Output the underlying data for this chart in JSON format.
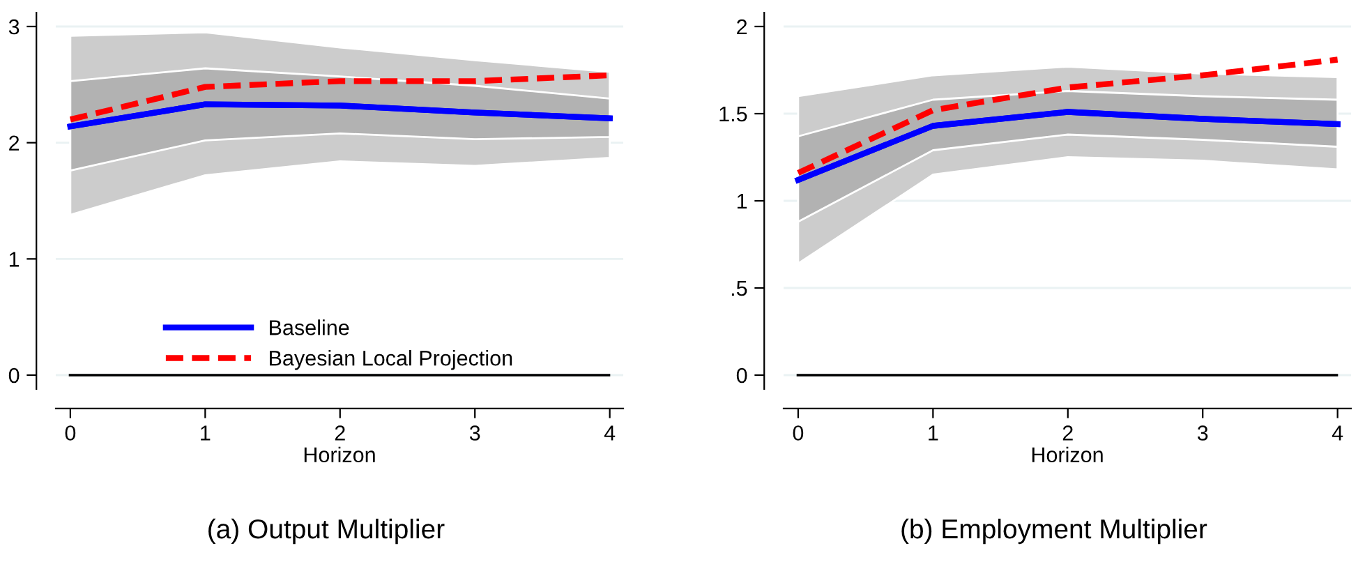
{
  "chart_data": [
    {
      "type": "line",
      "title": "(a) Output Multiplier",
      "xlabel": "Horizon",
      "x": [
        0,
        1,
        2,
        3,
        4
      ],
      "xlim": [
        -0.108,
        4.1
      ],
      "xticks": [
        0,
        1,
        2,
        3,
        4
      ],
      "ylim": [
        -0.12,
        3.12
      ],
      "yticks": [
        0,
        1,
        2,
        3
      ],
      "grid": "y",
      "legend": "bottom",
      "line_style": "solid",
      "ref_lines": [
        {
          "axis": "y",
          "value": 0,
          "color": "#000000"
        }
      ],
      "series": [
        {
          "color": "#0000ff",
          "values": [
            2.14,
            2.33,
            2.32,
            2.26,
            2.21
          ],
          "lower": [
            1.38,
            1.72,
            1.84,
            1.8,
            1.87
          ],
          "upper": [
            2.92,
            2.95,
            2.82,
            2.71,
            2.61
          ]
        },
        {
          "name": "Baseline",
          "color": "#0000ff",
          "values": [
            2.14,
            2.33,
            2.32,
            2.26,
            2.21
          ],
          "lower": [
            1.76,
            2.02,
            2.08,
            2.03,
            2.05
          ],
          "upper": [
            2.53,
            2.64,
            2.57,
            2.49,
            2.38
          ]
        },
        {
          "name": "Bayesian Local Projection",
          "color": "#ff0000",
          "line_style": "dashed",
          "values": [
            2.2,
            2.48,
            2.53,
            2.53,
            2.58
          ]
        }
      ]
    },
    {
      "type": "line",
      "title": "(b) Employment Multiplier",
      "xlabel": "Horizon",
      "x": [
        0,
        1,
        2,
        3,
        4
      ],
      "xlim": [
        -0.108,
        4.1
      ],
      "xticks": [
        0,
        1,
        2,
        3,
        4
      ],
      "ylim": [
        -0.08,
        2.08
      ],
      "yticks": [
        0,
        {
          "value": 0.5,
          "label": ".5"
        },
        1,
        1.5,
        2
      ],
      "grid": "y",
      "line_style": "solid",
      "ref_lines": [
        {
          "axis": "y",
          "value": 0,
          "color": "#000000"
        }
      ],
      "series": [
        {
          "color": "#0000ff",
          "values": [
            1.12,
            1.43,
            1.51,
            1.47,
            1.44
          ],
          "lower": [
            0.64,
            1.15,
            1.25,
            1.23,
            1.18
          ],
          "upper": [
            1.6,
            1.72,
            1.77,
            1.73,
            1.71
          ]
        },
        {
          "color": "#0000ff",
          "values": [
            1.12,
            1.43,
            1.51,
            1.47,
            1.44
          ],
          "lower": [
            0.88,
            1.29,
            1.38,
            1.35,
            1.31
          ],
          "upper": [
            1.37,
            1.58,
            1.63,
            1.6,
            1.58
          ]
        },
        {
          "color": "#ff0000",
          "line_style": "dashed",
          "values": [
            1.16,
            1.52,
            1.65,
            1.72,
            1.81
          ]
        }
      ]
    }
  ]
}
